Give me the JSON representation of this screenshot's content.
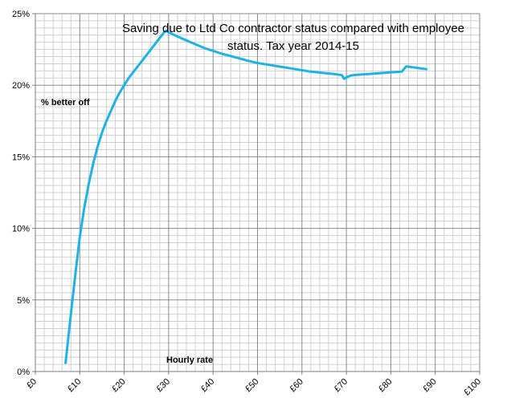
{
  "chart_data": {
    "type": "line",
    "title_lines": [
      "Saving due to Ltd Co contractor status compared with employee",
      "status. Tax year 2014-15"
    ],
    "xlabel": "Hourly rate",
    "ylabel": "% better off",
    "xlim": [
      0,
      100
    ],
    "ylim": [
      0,
      25
    ],
    "x_ticks": [
      0,
      10,
      20,
      30,
      40,
      50,
      60,
      70,
      80,
      90,
      100
    ],
    "x_tick_labels": [
      "£0",
      "£10",
      "£20",
      "£30",
      "£40",
      "£50",
      "£60",
      "£70",
      "£80",
      "£90",
      "£100"
    ],
    "y_ticks": [
      0,
      5,
      10,
      15,
      20,
      25
    ],
    "y_tick_labels": [
      "0%",
      "5%",
      "10%",
      "15%",
      "20%",
      "25%"
    ],
    "grid": true,
    "minor_grid_step": 2,
    "major_grid_step_x": 10,
    "major_grid_step_y": 5,
    "series": [
      {
        "color": "#1fb2e7",
        "x": [
          6.8,
          8,
          9,
          10,
          11,
          12,
          13,
          14,
          15,
          16,
          17,
          18,
          19,
          20,
          21,
          22,
          23,
          24,
          25,
          26,
          27,
          28,
          29,
          29.5,
          30,
          32,
          35,
          38,
          40,
          42,
          45,
          48,
          50,
          52,
          55,
          58,
          60,
          62,
          65,
          68,
          69,
          69.5,
          70,
          71,
          72,
          75,
          78,
          80,
          82.5,
          83,
          83.5,
          85,
          88
        ],
        "y": [
          0.6,
          4.0,
          6.8,
          9.4,
          11.4,
          13.1,
          14.5,
          15.7,
          16.7,
          17.5,
          18.2,
          18.9,
          19.5,
          20.0,
          20.5,
          20.9,
          21.3,
          21.7,
          22.1,
          22.5,
          22.9,
          23.3,
          23.7,
          23.8,
          23.7,
          23.4,
          23.0,
          22.6,
          22.4,
          22.2,
          21.95,
          21.7,
          21.55,
          21.45,
          21.3,
          21.15,
          21.05,
          20.95,
          20.85,
          20.75,
          20.7,
          20.45,
          20.55,
          20.68,
          20.72,
          20.78,
          20.85,
          20.9,
          20.95,
          21.15,
          21.32,
          21.25,
          21.12
        ]
      }
    ]
  }
}
